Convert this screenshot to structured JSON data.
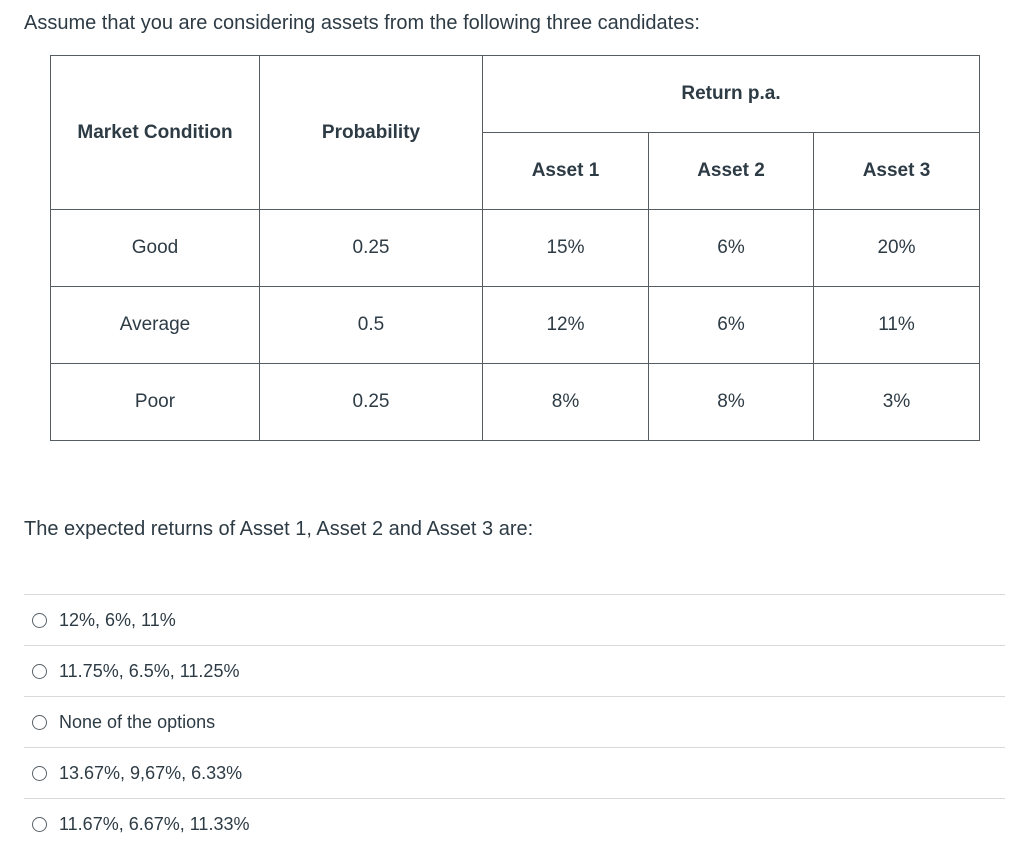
{
  "intro_text": "Assume that you are considering assets from the following three candidates:",
  "table": {
    "header_market": "Market Condition",
    "header_probability": "Probability",
    "header_group": "Return p.a.",
    "assets": [
      "Asset 1",
      "Asset 2",
      "Asset 3"
    ],
    "rows": [
      {
        "condition": "Good",
        "probability": "0.25",
        "returns": [
          "15%",
          "6%",
          "20%"
        ]
      },
      {
        "condition": "Average",
        "probability": "0.5",
        "returns": [
          "12%",
          "6%",
          "11%"
        ]
      },
      {
        "condition": "Poor",
        "probability": "0.25",
        "returns": [
          "8%",
          "8%",
          "3%"
        ]
      }
    ]
  },
  "question_text": "The expected returns of Asset 1, Asset 2 and Asset 3 are:",
  "options": [
    "12%, 6%, 11%",
    "11.75%, 6.5%, 11.25%",
    "None of the options",
    "13.67%, 9,67%, 6.33%",
    "11.67%, 6.67%, 11.33%"
  ]
}
